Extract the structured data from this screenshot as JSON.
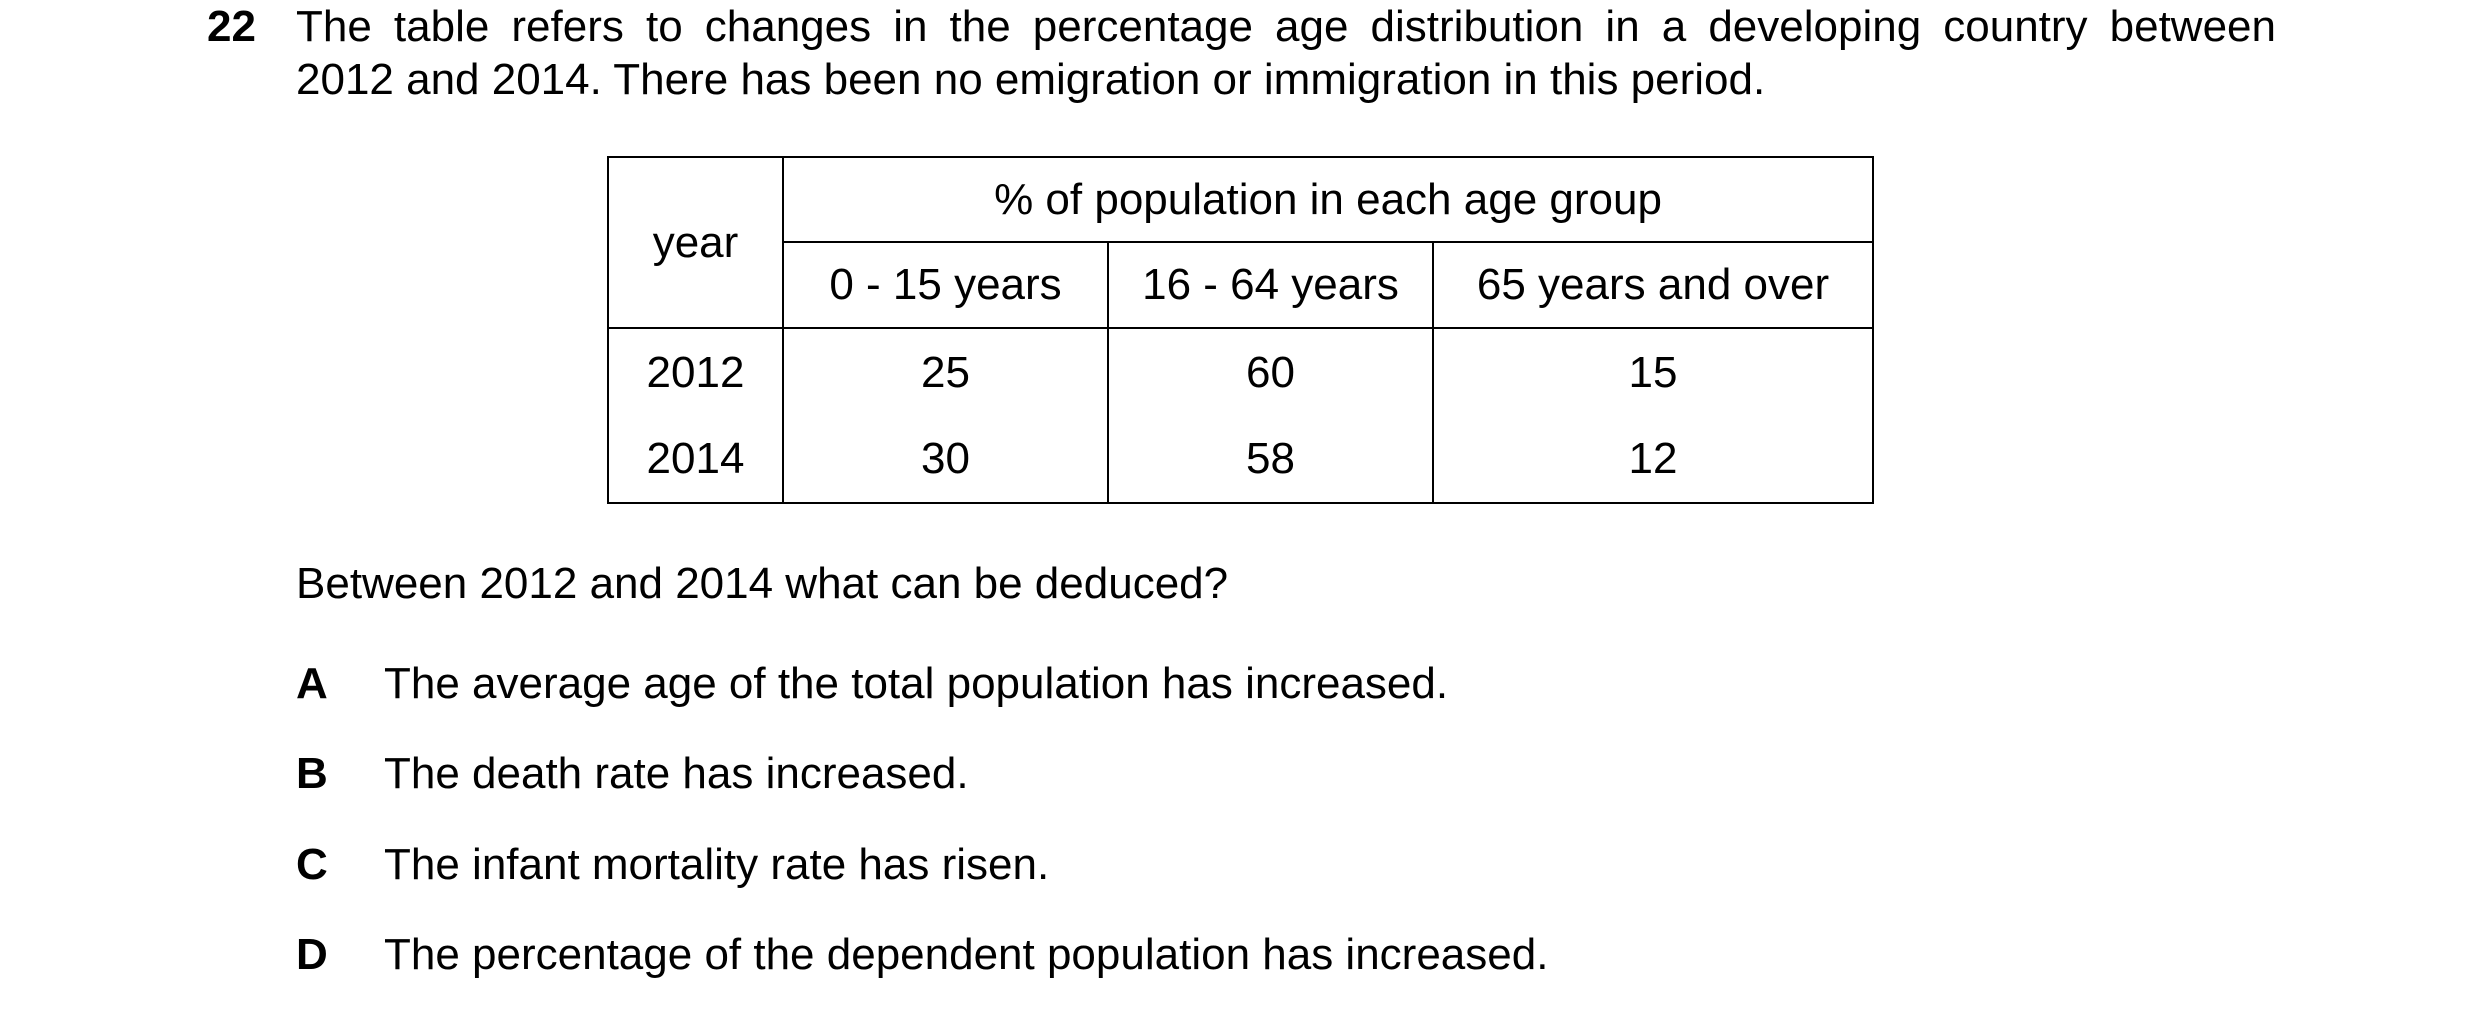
{
  "question": {
    "number": "22",
    "stem_line1": "The table refers to changes in the percentage age distribution in a developing country between",
    "stem_line2": "2012 and 2014. There has been no emigration or immigration in this period.",
    "prompt": "Between 2012 and 2014 what can be deduced?"
  },
  "table": {
    "year_header": "year",
    "group_header": "% of population in each age group",
    "columns": [
      "0 - 15 years",
      "16 - 64 years",
      "65 years and over"
    ],
    "rows": [
      {
        "year": "2012",
        "values": [
          "25",
          "60",
          "15"
        ]
      },
      {
        "year": "2014",
        "values": [
          "30",
          "58",
          "12"
        ]
      }
    ]
  },
  "options": [
    {
      "letter": "A",
      "text": "The average age of the total population has increased."
    },
    {
      "letter": "B",
      "text": "The death rate has increased."
    },
    {
      "letter": "C",
      "text": "The infant mortality rate has risen."
    },
    {
      "letter": "D",
      "text": "The percentage of the dependent population has increased."
    }
  ]
}
